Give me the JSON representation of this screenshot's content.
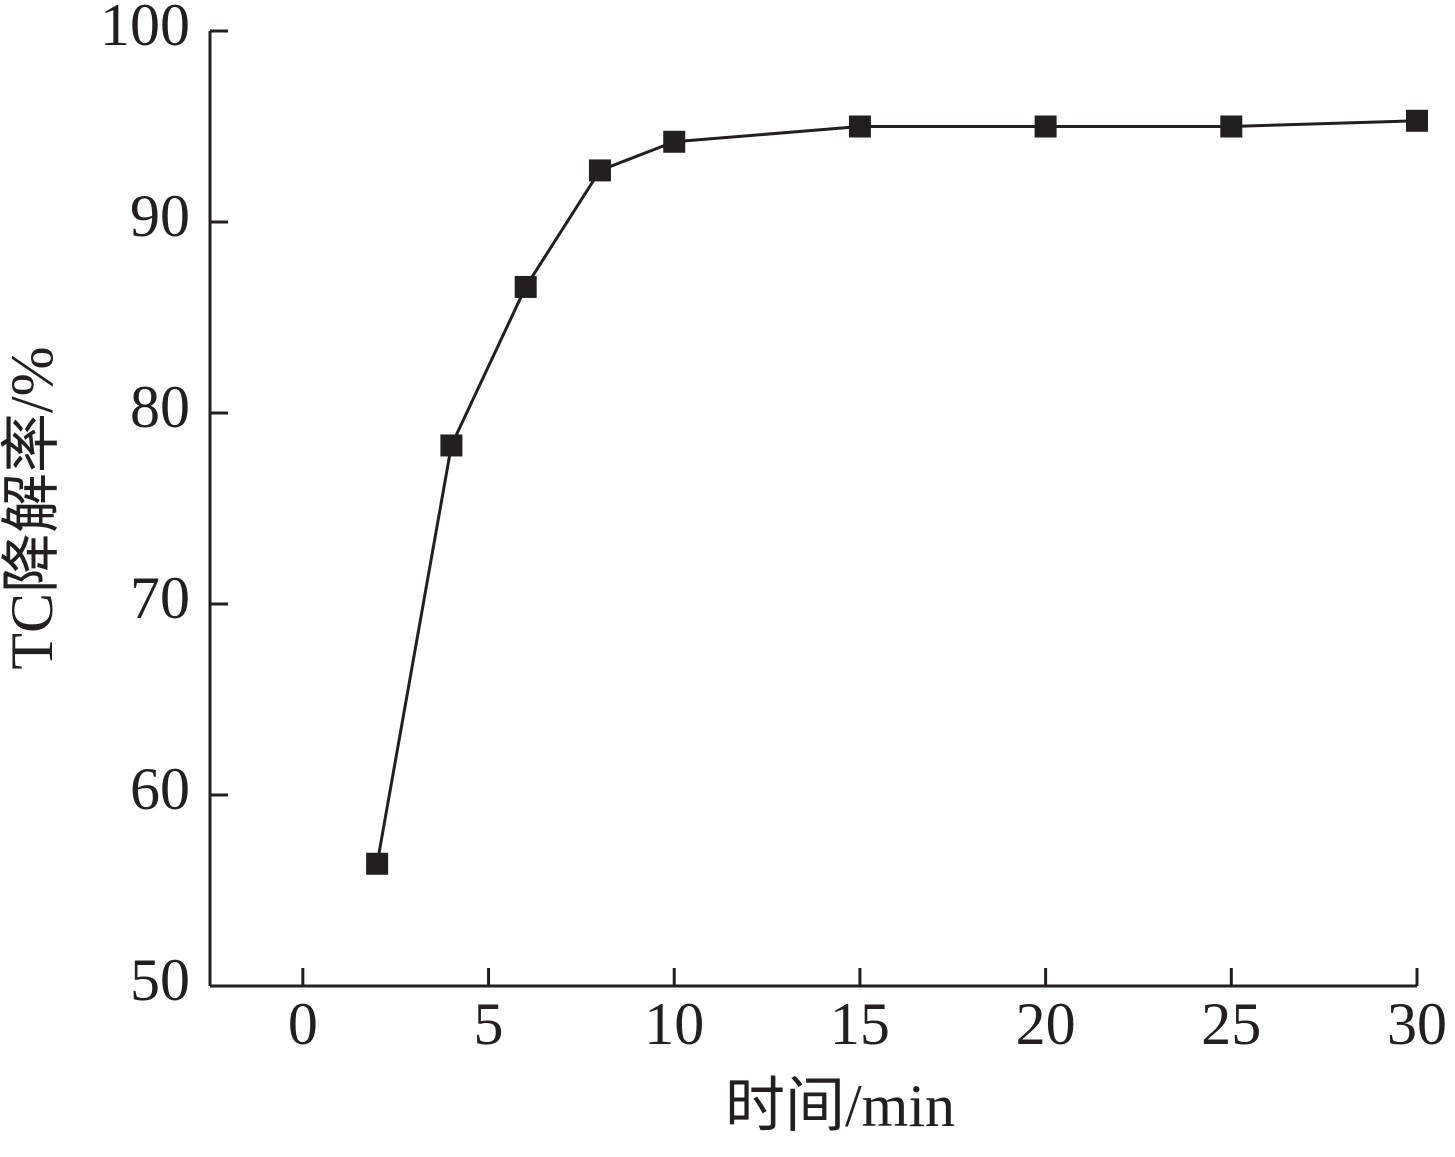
{
  "chart_data": {
    "type": "line",
    "x_label": "时间/min",
    "y_label": "TC降解率/%",
    "x": [
      2,
      4,
      6,
      8,
      10,
      15,
      20,
      25,
      30
    ],
    "series": [
      {
        "color": "#231f20",
        "marker": "square",
        "values": [
          56.4,
          78.3,
          86.6,
          92.7,
          94.2,
          95.0,
          95.0,
          95.0,
          95.3
        ]
      }
    ],
    "xlim": [
      -2.5,
      30
    ],
    "xticks": [
      0,
      5,
      10,
      15,
      20,
      25,
      30
    ],
    "ylim": [
      50,
      100
    ],
    "yticks": [
      50,
      60,
      70,
      80,
      90,
      100
    ],
    "grid": false
  }
}
